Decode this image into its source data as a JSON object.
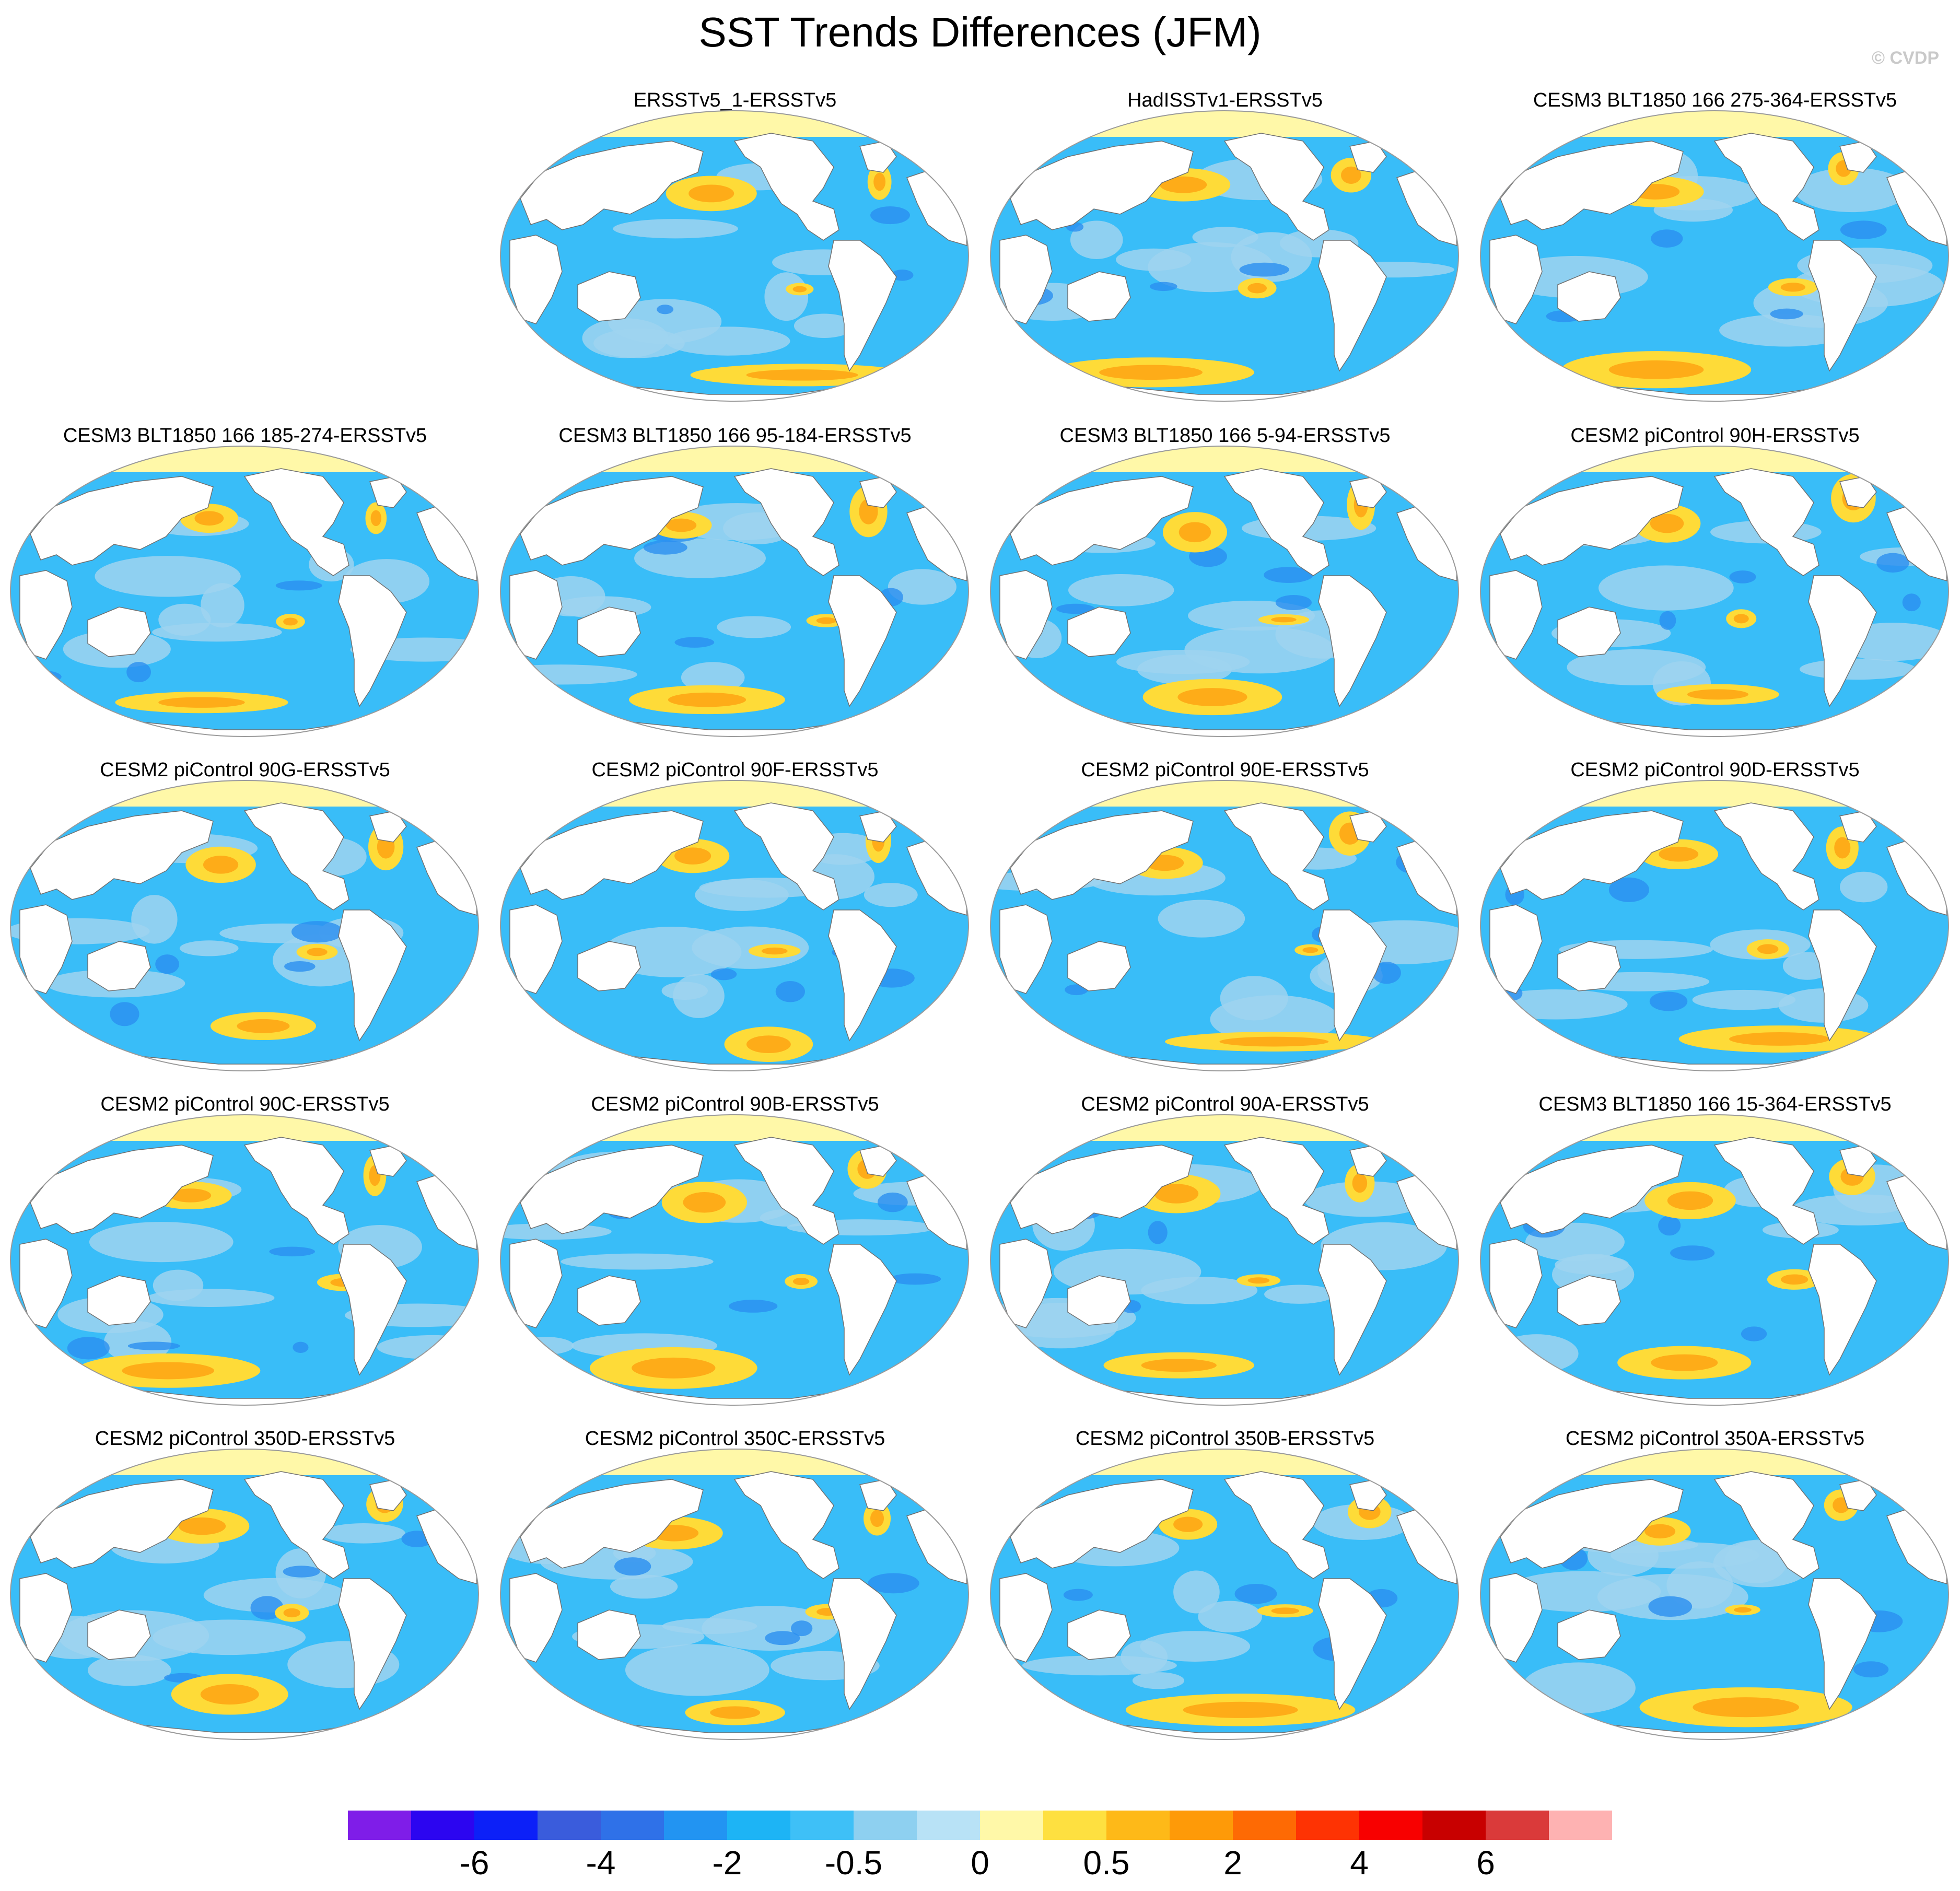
{
  "title": "SST Trends Differences (JFM)",
  "watermark": "© CVDP",
  "colors": {
    "ocean_base": "#39bdf8",
    "land": "#ffffff",
    "arctic_band": "#fff8a8",
    "coastline": "#707070",
    "warm_patch": "#fedb38",
    "warm_core": "#feac18",
    "cool_patch": "#9fd4f0",
    "cold_patch": "#2b8ef0"
  },
  "panels": [
    {
      "title": "ERSSTv5_1-ERSSTv5",
      "variant": 0
    },
    {
      "title": "HadISSTv1-ERSSTv5",
      "variant": 1
    },
    {
      "title": "CESM3 BLT1850 166 275-364-ERSSTv5",
      "variant": 2
    },
    {
      "title": "CESM3 BLT1850 166 185-274-ERSSTv5",
      "variant": 3
    },
    {
      "title": "CESM3 BLT1850 166 95-184-ERSSTv5",
      "variant": 4
    },
    {
      "title": "CESM3 BLT1850 166 5-94-ERSSTv5",
      "variant": 5
    },
    {
      "title": "CESM2 piControl 90H-ERSSTv5",
      "variant": 6
    },
    {
      "title": "CESM2 piControl 90G-ERSSTv5",
      "variant": 7
    },
    {
      "title": "CESM2 piControl 90F-ERSSTv5",
      "variant": 8
    },
    {
      "title": "CESM2 piControl 90E-ERSSTv5",
      "variant": 9
    },
    {
      "title": "CESM2 piControl 90D-ERSSTv5",
      "variant": 10
    },
    {
      "title": "CESM2 piControl 90C-ERSSTv5",
      "variant": 11
    },
    {
      "title": "CESM2 piControl 90B-ERSSTv5",
      "variant": 12
    },
    {
      "title": "CESM2 piControl 90A-ERSSTv5",
      "variant": 13
    },
    {
      "title": "CESM3 BLT1850 166 15-364-ERSSTv5",
      "variant": 14
    },
    {
      "title": "CESM2 piControl 350D-ERSSTv5",
      "variant": 15
    },
    {
      "title": "CESM2 piControl 350C-ERSSTv5",
      "variant": 16
    },
    {
      "title": "CESM2 piControl 350B-ERSSTv5",
      "variant": 17
    },
    {
      "title": "CESM2 piControl 350A-ERSSTv5",
      "variant": 18
    }
  ],
  "colorbar": {
    "colors": [
      "#7f1de8",
      "#2c05f0",
      "#0c20f8",
      "#3a5cdc",
      "#2f71e8",
      "#2294f2",
      "#1db4f5",
      "#3ec0f7",
      "#8ed0f0",
      "#b8e2f6",
      "#fff8a8",
      "#fee040",
      "#feb918",
      "#fe9a08",
      "#fe6a04",
      "#fe3303",
      "#f80000",
      "#c80000",
      "#da3a3a",
      "#feb2b2"
    ],
    "labels": [
      "-6",
      "-4",
      "-2",
      "-0.5",
      "0",
      "0.5",
      "2",
      "4",
      "6"
    ]
  }
}
